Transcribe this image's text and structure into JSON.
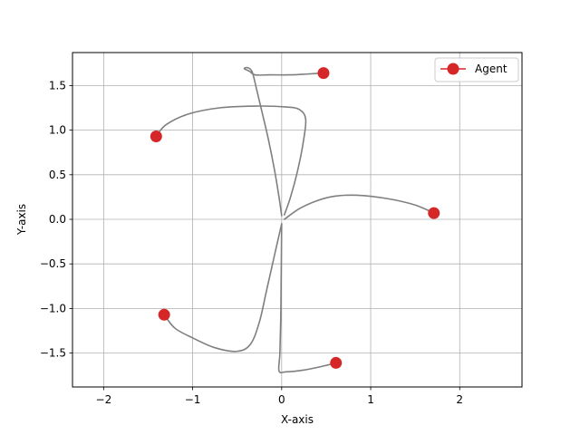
{
  "chart_data": {
    "type": "scatter",
    "title": "",
    "xlabel": "X-axis",
    "ylabel": "Y-axis",
    "xlim": [
      -2.35,
      2.7
    ],
    "ylim": [
      -1.88,
      1.87
    ],
    "x_ticks": [
      -2,
      -1,
      0,
      1,
      2
    ],
    "y_ticks": [
      -1.5,
      -1.0,
      -0.5,
      0.0,
      0.5,
      1.0,
      1.5
    ],
    "x_tick_labels": [
      "−2",
      "−1",
      "0",
      "1",
      "2"
    ],
    "y_tick_labels": [
      "−1.5",
      "−1.0",
      "−0.5",
      "0.0",
      "0.5",
      "1.0",
      "1.5"
    ],
    "grid": true,
    "legend_position": "top-right",
    "legend": [
      {
        "label": "Agent",
        "color": "#d62728"
      }
    ],
    "agent_color": "#d62728",
    "path_color": "#7f7f7f",
    "agents": [
      {
        "x": 0.47,
        "y": 1.64
      },
      {
        "x": -1.41,
        "y": 0.93
      },
      {
        "x": 1.71,
        "y": 0.07
      },
      {
        "x": -1.32,
        "y": -1.07
      },
      {
        "x": 0.61,
        "y": -1.61
      }
    ],
    "paths": [
      [
        [
          0.47,
          1.64
        ],
        [
          0.3,
          1.63
        ],
        [
          0.1,
          1.62
        ],
        [
          -0.13,
          1.62
        ],
        [
          -0.3,
          1.62
        ],
        [
          -0.36,
          1.66
        ],
        [
          -0.42,
          1.69
        ],
        [
          -0.38,
          1.7
        ],
        [
          -0.33,
          1.65
        ],
        [
          -0.28,
          1.45
        ],
        [
          -0.22,
          1.2
        ],
        [
          -0.15,
          0.9
        ],
        [
          -0.08,
          0.55
        ],
        [
          -0.03,
          0.25
        ],
        [
          0.0,
          0.04
        ]
      ],
      [
        [
          -1.41,
          0.93
        ],
        [
          -1.3,
          1.06
        ],
        [
          -1.05,
          1.18
        ],
        [
          -0.7,
          1.25
        ],
        [
          -0.3,
          1.27
        ],
        [
          0.05,
          1.26
        ],
        [
          0.2,
          1.23
        ],
        [
          0.27,
          1.12
        ],
        [
          0.24,
          0.85
        ],
        [
          0.18,
          0.55
        ],
        [
          0.1,
          0.25
        ],
        [
          0.03,
          0.05
        ]
      ],
      [
        [
          1.71,
          0.07
        ],
        [
          1.5,
          0.16
        ],
        [
          1.2,
          0.23
        ],
        [
          0.85,
          0.27
        ],
        [
          0.6,
          0.26
        ],
        [
          0.4,
          0.21
        ],
        [
          0.2,
          0.12
        ],
        [
          0.03,
          0.0
        ]
      ],
      [
        [
          -1.32,
          -1.07
        ],
        [
          -1.2,
          -1.22
        ],
        [
          -1.0,
          -1.33
        ],
        [
          -0.75,
          -1.44
        ],
        [
          -0.5,
          -1.48
        ],
        [
          -0.35,
          -1.4
        ],
        [
          -0.25,
          -1.15
        ],
        [
          -0.17,
          -0.8
        ],
        [
          -0.08,
          -0.4
        ],
        [
          0.0,
          -0.05
        ]
      ],
      [
        [
          0.61,
          -1.61
        ],
        [
          0.45,
          -1.65
        ],
        [
          0.25,
          -1.69
        ],
        [
          0.05,
          -1.71
        ],
        [
          -0.03,
          -1.7
        ],
        [
          -0.02,
          -1.5
        ],
        [
          -0.01,
          -1.1
        ],
        [
          -0.005,
          -0.6
        ],
        [
          0.0,
          -0.05
        ]
      ]
    ]
  }
}
